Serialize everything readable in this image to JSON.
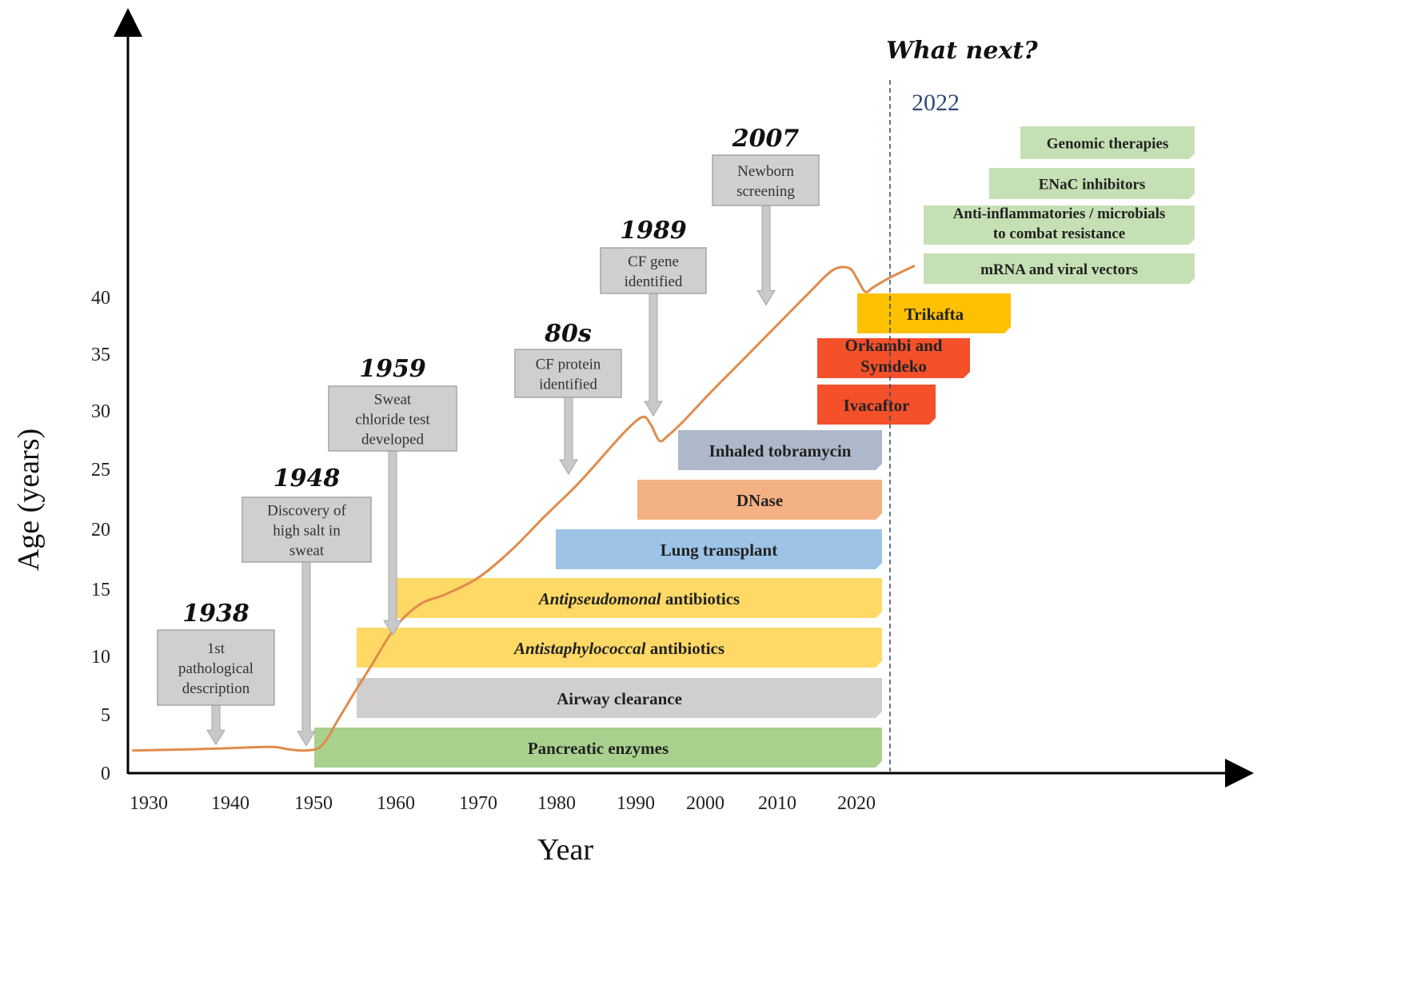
{
  "chart_data": {
    "type": "line",
    "xlabel": "Year",
    "ylabel": "Age (years)",
    "x_ticks": [
      "1930",
      "1940",
      "1950",
      "1960",
      "1970",
      "1980",
      "1990",
      "2000",
      "2010",
      "2020"
    ],
    "y_ticks": [
      "0",
      "5",
      "10",
      "15",
      "20",
      "25",
      "30",
      "35",
      "40"
    ],
    "xlim": [
      1928,
      2041
    ],
    "ylim": [
      0,
      45
    ],
    "series": [
      {
        "color": "#e08b4c",
        "x": [
          1928,
          1935,
          1940,
          1945,
          1947,
          1949,
          1951,
          1953,
          1955,
          1957,
          1960,
          1963,
          1966,
          1970,
          1974,
          1978,
          1982,
          1985,
          1988,
          1990,
          1991,
          1992,
          1993,
          1995,
          1998,
          2002,
          2006,
          2010,
          2013,
          2015,
          2016,
          2017,
          2018,
          2020,
          2023
        ],
        "y": [
          1.9,
          2.0,
          2.1,
          2.2,
          2.0,
          1.9,
          2.3,
          4.5,
          6.8,
          9.0,
          12.3,
          14.2,
          15.0,
          16.4,
          18.7,
          21.5,
          24.2,
          26.5,
          28.8,
          29.9,
          29.2,
          27.9,
          28.3,
          29.6,
          31.8,
          34.6,
          37.4,
          40.2,
          42.2,
          42.4,
          41.5,
          40.4,
          40.8,
          41.6,
          42.6
        ]
      }
    ],
    "milestones": [
      {
        "year_label": "1938",
        "text": [
          "1st",
          "pathological",
          "description"
        ],
        "arrow_year": 1938,
        "arrow_age": 2.4
      },
      {
        "year_label": "1948",
        "text": [
          "Discovery of",
          "high salt in",
          "sweat"
        ],
        "arrow_year": 1949,
        "arrow_age": 2.3
      },
      {
        "year_label": "1959",
        "text": [
          "Sweat",
          "chloride test",
          "developed"
        ],
        "arrow_year": 1959,
        "arrow_age": 11.6
      },
      {
        "year_label": "80s",
        "text": [
          "CF protein",
          "identified"
        ],
        "arrow_year": 1981,
        "arrow_age": 25.1
      },
      {
        "year_label": "1989",
        "text": [
          "CF gene",
          "identified"
        ],
        "arrow_year": 1991,
        "arrow_age": 30.0
      },
      {
        "year_label": "2007",
        "text": [
          "Newborn",
          "screening"
        ],
        "arrow_year": 2008,
        "arrow_age": 39.3
      }
    ],
    "treatments": [
      {
        "name": "Pancreatic enzymes",
        "italic_prefix": "",
        "start": 1950,
        "color": "#a9d18e"
      },
      {
        "name": "Airway clearance",
        "italic_prefix": "",
        "start": 1955,
        "color": "#d0cece"
      },
      {
        "name": "antibiotics",
        "italic_prefix": "Antistaphylococcal",
        "start": 1955,
        "color": "#ffd966"
      },
      {
        "name": "antibiotics",
        "italic_prefix": "Antipseudomonal",
        "start": 1960,
        "color": "#ffd966"
      },
      {
        "name": "Lung transplant",
        "italic_prefix": "",
        "start": 1980,
        "color": "#9dc3e6"
      },
      {
        "name": "DNase",
        "italic_prefix": "",
        "start": 1990,
        "color": "#f4b183"
      },
      {
        "name": "Inhaled tobramycin",
        "italic_prefix": "",
        "start": 1997,
        "color": "#adb9ca"
      },
      {
        "name": "Ivacaftor",
        "italic_prefix": "",
        "start": 2012,
        "color": "#f4502a"
      },
      {
        "name": [
          "Orkambi and",
          "Symdeko"
        ],
        "italic_prefix": "",
        "start": 2015,
        "color": "#f4502a"
      },
      {
        "name": "Trikafta",
        "italic_prefix": "",
        "start": 2019,
        "color": "#ffc000"
      }
    ],
    "future": {
      "heading": "What next?",
      "year": "2022",
      "items": [
        {
          "name": "Genomic therapies",
          "color": "#c5e0b4"
        },
        {
          "name": "ENaC inhibitors",
          "color": "#c5e0b4"
        },
        {
          "name": [
            "Anti-inflammatories / microbials",
            "to combat resistance"
          ],
          "color": "#c5e0b4"
        },
        {
          "name": "mRNA and viral vectors",
          "color": "#c5e0b4"
        }
      ]
    }
  }
}
